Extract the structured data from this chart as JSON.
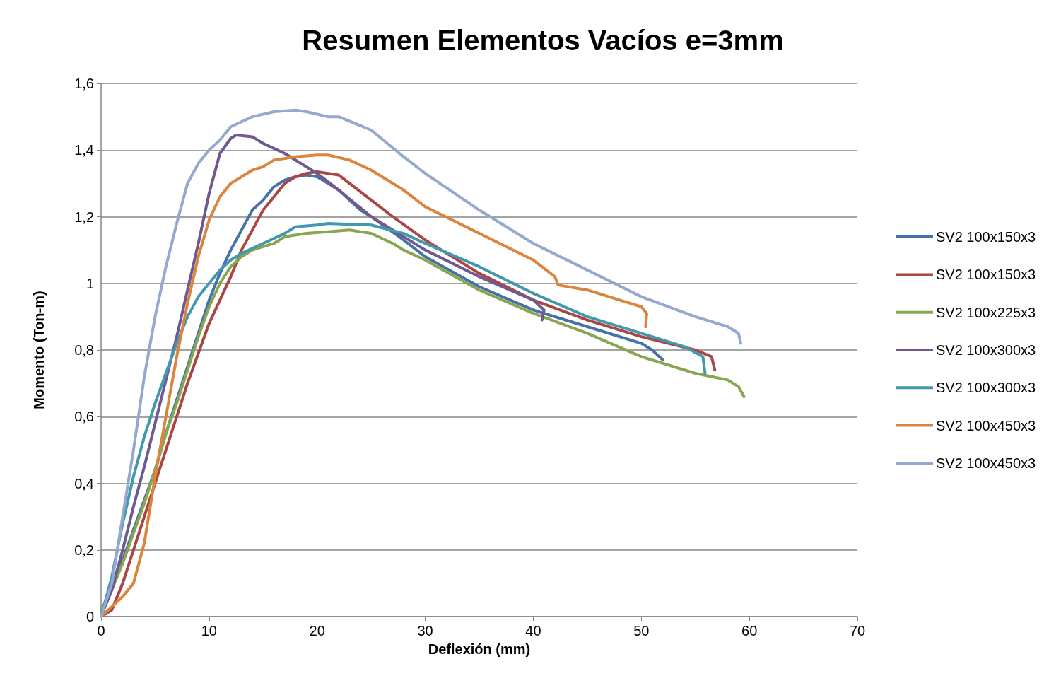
{
  "chart_data": {
    "type": "line",
    "title": "Resumen Elementos Vacíos e=3mm",
    "xlabel": "Deflexión (mm)",
    "ylabel": "Momento (Ton-m)",
    "xlim": [
      0,
      70
    ],
    "xticks": [
      0,
      10,
      20,
      30,
      40,
      50,
      60,
      70
    ],
    "ylim": [
      0,
      1.6
    ],
    "yticks": [
      0,
      {
        "value": 0.2,
        "label": "0,2"
      },
      {
        "value": 0.4,
        "label": "0,4"
      },
      {
        "value": 0.6,
        "label": "0,6"
      },
      {
        "value": 0.8,
        "label": "0,8"
      },
      1,
      {
        "value": 1.2,
        "label": "1,2"
      },
      {
        "value": 1.4,
        "label": "1,4"
      },
      {
        "value": 1.6,
        "label": "1,6"
      }
    ],
    "grid": "y",
    "legend": "right",
    "marker": "none",
    "line_style": "solid",
    "series": [
      {
        "name": "SV2 100x150x3",
        "color": "#4572a7",
        "x": [
          0,
          1,
          2,
          3,
          4,
          5,
          6,
          7,
          8,
          9,
          10,
          11,
          12,
          13,
          14,
          15,
          16,
          17,
          18,
          19,
          20,
          21,
          22,
          23,
          24,
          25,
          28,
          30,
          35,
          40,
          45,
          50,
          51,
          52
        ],
        "values": [
          0,
          0.1,
          0.17,
          0.26,
          0.35,
          0.44,
          0.55,
          0.65,
          0.75,
          0.85,
          0.95,
          1.03,
          1.1,
          1.16,
          1.22,
          1.25,
          1.29,
          1.31,
          1.32,
          1.325,
          1.32,
          1.3,
          1.28,
          1.25,
          1.22,
          1.2,
          1.13,
          1.08,
          0.99,
          0.92,
          0.87,
          0.82,
          0.8,
          0.77
        ]
      },
      {
        "name": "SV2 100x150x3",
        "color": "#aa4643",
        "x": [
          0,
          1,
          2,
          3,
          4,
          5,
          6,
          7,
          8,
          9,
          10,
          11,
          12,
          13,
          14,
          15,
          16,
          17,
          18,
          19,
          20,
          21,
          22,
          23,
          25,
          27,
          30,
          35,
          40,
          45,
          50,
          55,
          56.5,
          56.8
        ],
        "values": [
          0,
          0.02,
          0.1,
          0.2,
          0.3,
          0.4,
          0.5,
          0.6,
          0.7,
          0.79,
          0.88,
          0.95,
          1.02,
          1.1,
          1.16,
          1.22,
          1.26,
          1.3,
          1.32,
          1.33,
          1.335,
          1.33,
          1.325,
          1.3,
          1.25,
          1.2,
          1.13,
          1.03,
          0.95,
          0.89,
          0.84,
          0.8,
          0.78,
          0.74
        ]
      },
      {
        "name": "SV2 100x225x3",
        "color": "#89a54e",
        "x": [
          0,
          1,
          2,
          3,
          4,
          5,
          6,
          7,
          8,
          9,
          10,
          11,
          12,
          13,
          14,
          16,
          17,
          19,
          21,
          23,
          25,
          27,
          28,
          30,
          35,
          40,
          45,
          50,
          55,
          58,
          59,
          59.5
        ],
        "values": [
          0.02,
          0.08,
          0.16,
          0.25,
          0.34,
          0.44,
          0.55,
          0.64,
          0.74,
          0.84,
          0.93,
          1.0,
          1.05,
          1.08,
          1.1,
          1.12,
          1.14,
          1.15,
          1.155,
          1.16,
          1.15,
          1.12,
          1.1,
          1.07,
          0.98,
          0.91,
          0.85,
          0.78,
          0.73,
          0.71,
          0.69,
          0.66
        ]
      },
      {
        "name": "SV2 100x300x3",
        "color": "#71588f",
        "x": [
          0,
          1,
          2,
          3,
          4,
          5,
          6,
          7,
          8,
          9,
          10,
          11,
          12,
          12.5,
          14,
          15,
          17,
          20,
          22,
          25,
          30,
          35,
          40,
          41,
          40.8
        ],
        "values": [
          0,
          0.08,
          0.2,
          0.33,
          0.45,
          0.58,
          0.71,
          0.84,
          0.98,
          1.12,
          1.27,
          1.39,
          1.435,
          1.445,
          1.44,
          1.42,
          1.39,
          1.33,
          1.28,
          1.2,
          1.1,
          1.02,
          0.95,
          0.92,
          0.89
        ]
      },
      {
        "name": "SV2 100x300x3",
        "color": "#4198af",
        "x": [
          0,
          1,
          2,
          3,
          4,
          5,
          6,
          7,
          8,
          9,
          10,
          11,
          12,
          13,
          15,
          17,
          18,
          20,
          21,
          25,
          28,
          30,
          35,
          40,
          45,
          50,
          54,
          55.7,
          55.9
        ],
        "values": [
          0,
          0.12,
          0.28,
          0.42,
          0.54,
          0.64,
          0.73,
          0.82,
          0.9,
          0.96,
          1.0,
          1.04,
          1.07,
          1.09,
          1.12,
          1.15,
          1.17,
          1.175,
          1.18,
          1.175,
          1.15,
          1.12,
          1.05,
          0.97,
          0.9,
          0.85,
          0.81,
          0.78,
          0.73
        ]
      },
      {
        "name": "SV2 100x450x3",
        "color": "#db843d",
        "x": [
          0,
          1,
          2,
          3,
          4,
          5,
          6,
          7,
          8,
          9,
          10,
          11,
          12,
          13,
          14,
          15,
          16,
          18,
          20,
          21,
          23,
          25,
          28,
          30,
          35,
          40,
          42,
          42.3,
          45,
          48,
          50,
          50.5,
          50.4
        ],
        "values": [
          0,
          0.03,
          0.06,
          0.1,
          0.22,
          0.42,
          0.6,
          0.78,
          0.94,
          1.08,
          1.19,
          1.26,
          1.3,
          1.32,
          1.34,
          1.35,
          1.37,
          1.38,
          1.385,
          1.385,
          1.37,
          1.34,
          1.28,
          1.23,
          1.15,
          1.07,
          1.02,
          0.995,
          0.98,
          0.95,
          0.93,
          0.91,
          0.87
        ]
      },
      {
        "name": "SV2 100x450x3",
        "color": "#93a9cf",
        "x": [
          0,
          1,
          2,
          3,
          4,
          5,
          6,
          7,
          8,
          9,
          10,
          11,
          12,
          14,
          16,
          18,
          19,
          21,
          22,
          25,
          28,
          30,
          35,
          40,
          45,
          50,
          55,
          58,
          59,
          59.2
        ],
        "values": [
          0,
          0.1,
          0.3,
          0.5,
          0.72,
          0.9,
          1.05,
          1.18,
          1.3,
          1.36,
          1.4,
          1.43,
          1.47,
          1.5,
          1.515,
          1.52,
          1.515,
          1.5,
          1.5,
          1.46,
          1.38,
          1.33,
          1.22,
          1.12,
          1.04,
          0.96,
          0.9,
          0.87,
          0.85,
          0.82
        ]
      }
    ]
  }
}
